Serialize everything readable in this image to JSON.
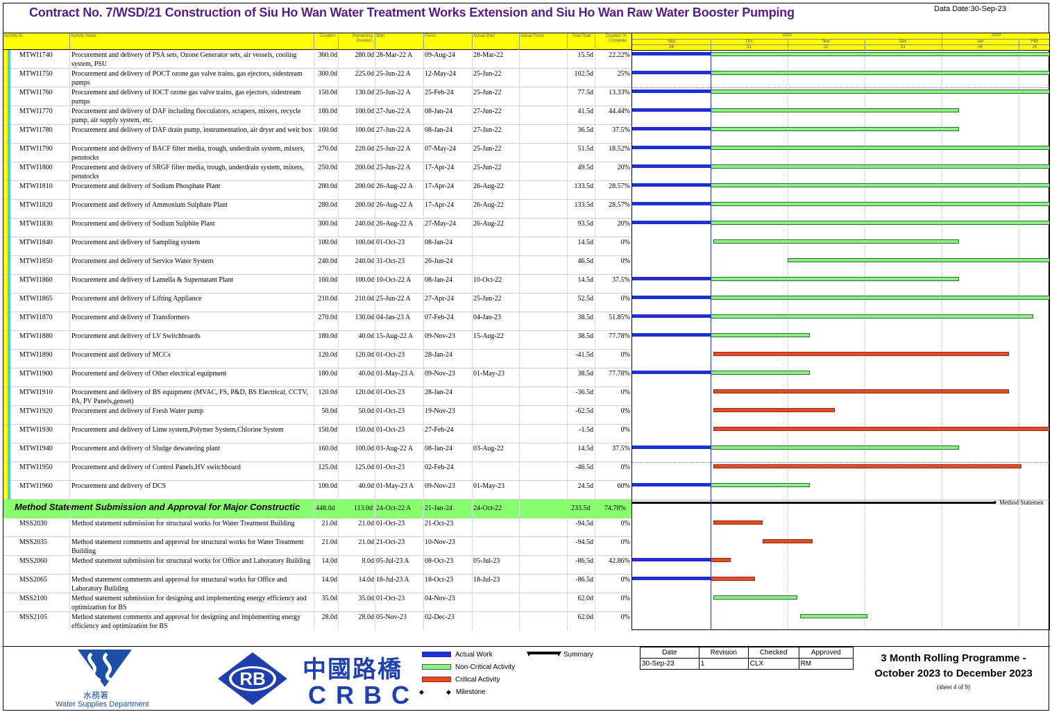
{
  "title": "Contract No. 7/WSD/21 Construction of Siu Ho Wan Water Treatment Works Extension and Siu Ho Wan Raw Water Booster Pumping",
  "data_date": "Data Date:30-Sep-23",
  "columns": {
    "id": "Activity ID",
    "name": "Activity Name",
    "orig_dur": "Duration",
    "rem_dur_1": "Remaining",
    "rem_dur_2": "Duration",
    "start": "Start",
    "finish": "Finish",
    "actual_start": "Actual Start",
    "actual_finish": "Actual Finish",
    "total_float": "Total Float",
    "pct_1": "Duration %",
    "pct_2": "Complete"
  },
  "timescale": {
    "years": [
      "2023",
      "2024"
    ],
    "months": [
      "Sep",
      "Oct",
      "Nov",
      "Dec",
      "Jan",
      "Feb"
    ],
    "days": [
      "26",
      "31",
      "22",
      "31",
      "24",
      "25"
    ]
  },
  "rows": [
    {
      "id": "MTWI1740",
      "name": "Procurement and delivery of PSA sets, Ozone Generator sets, air vessels, cooling system, PSU",
      "od": "360.0d",
      "rd": "280.0d",
      "start": "28-Mar-22 A",
      "finish": "09-Aug-24",
      "as": "28-Mar-22",
      "af": "",
      "tf": "15.5d",
      "pct": "22.22%"
    },
    {
      "id": "MTWI1750",
      "name": "Procurement and delivery of POCT ozone gas valve trains, gas ejectors, sidestream pumps",
      "od": "300.0d",
      "rd": "225.0d",
      "start": "25-Jun-22 A",
      "finish": "12-May-24",
      "as": "25-Jun-22",
      "af": "",
      "tf": "102.5d",
      "pct": "25%"
    },
    {
      "id": "MTWI1760",
      "name": "Procurement and delivery of IOCT ozone gas valve trains, gas ejectors, sidestream pumps",
      "od": "150.0d",
      "rd": "130.0d",
      "start": "25-Jun-22 A",
      "finish": "25-Feb-24",
      "as": "25-Jun-22",
      "af": "",
      "tf": "77.5d",
      "pct": "13.33%"
    },
    {
      "id": "MTWI1770",
      "name": "Procurement and delivery of DAF including flocculators, scrapers, mixers, recycle pump, air supply system, etc.",
      "od": "180.0d",
      "rd": "100.0d",
      "start": "27-Jun-22 A",
      "finish": "08-Jan-24",
      "as": "27-Jun-22",
      "af": "",
      "tf": "41.5d",
      "pct": "44.44%"
    },
    {
      "id": "MTWI1780",
      "name": "Procurement and delivery of DAF drain pump, instrumentation, air dryer and weir box",
      "od": "160.0d",
      "rd": "100.0d",
      "start": "27-Jun-22 A",
      "finish": "08-Jan-24",
      "as": "27-Jun-22",
      "af": "",
      "tf": "36.5d",
      "pct": "37.5%"
    },
    {
      "id": "MTWI1790",
      "name": "Procurement and delivery of BACF filter media, trough, underdrain system, mixers, penstocks",
      "od": "270.0d",
      "rd": "220.0d",
      "start": "25-Jun-22 A",
      "finish": "07-May-24",
      "as": "25-Jun-22",
      "af": "",
      "tf": "51.5d",
      "pct": "18.52%"
    },
    {
      "id": "MTWI1800",
      "name": "Procurement and delivery of SRGF filter media, trough, underdrain system, mixers, penstocks",
      "od": "250.0d",
      "rd": "200.0d",
      "start": "25-Jun-22 A",
      "finish": "17-Apr-24",
      "as": "25-Jun-22",
      "af": "",
      "tf": "49.5d",
      "pct": "20%"
    },
    {
      "id": "MTWI1810",
      "name": "Procurement and delivery of Sodium Phosphate Plant",
      "od": "280.0d",
      "rd": "200.0d",
      "start": "26-Aug-22 A",
      "finish": "17-Apr-24",
      "as": "26-Aug-22",
      "af": "",
      "tf": "133.5d",
      "pct": "28.57%"
    },
    {
      "id": "MTWI1820",
      "name": "Procurement and delivery of Ammonium Sulphate Plant",
      "od": "280.0d",
      "rd": "200.0d",
      "start": "26-Aug-22 A",
      "finish": "17-Apr-24",
      "as": "26-Aug-22",
      "af": "",
      "tf": "133.5d",
      "pct": "28.57%"
    },
    {
      "id": "MTWI1830",
      "name": "Procurement and delivery of Sodium Sulphite Plant",
      "od": "300.0d",
      "rd": "240.0d",
      "start": "26-Aug-22 A",
      "finish": "27-May-24",
      "as": "26-Aug-22",
      "af": "",
      "tf": "93.5d",
      "pct": "20%"
    },
    {
      "id": "MTWI1840",
      "name": "Procurement and delivery of Sampling system",
      "od": "100.0d",
      "rd": "100.0d",
      "start": "01-Oct-23",
      "finish": "08-Jan-24",
      "as": "",
      "af": "",
      "tf": "14.5d",
      "pct": "0%"
    },
    {
      "id": "MTWI1850",
      "name": "Procurement and delivery of Service Water System",
      "od": "240.0d",
      "rd": "240.0d",
      "start": "31-Oct-23",
      "finish": "26-Jun-24",
      "as": "",
      "af": "",
      "tf": "46.5d",
      "pct": "0%"
    },
    {
      "id": "MTWI1860",
      "name": "Procurement and delivery of Lamella & Supernatant Plant",
      "od": "160.0d",
      "rd": "100.0d",
      "start": "10-Oct-22 A",
      "finish": "08-Jan-24",
      "as": "10-Oct-22",
      "af": "",
      "tf": "14.5d",
      "pct": "37.5%"
    },
    {
      "id": "MTWI1865",
      "name": "Procurement and delivery of Lifting Appliance",
      "od": "210.0d",
      "rd": "210.0d",
      "start": "25-Jun-22 A",
      "finish": "27-Apr-24",
      "as": "25-Jun-22",
      "af": "",
      "tf": "52.5d",
      "pct": "0%"
    },
    {
      "id": "MTWI1870",
      "name": "Procurement and delivery of Transformers",
      "od": "270.0d",
      "rd": "130.0d",
      "start": "04-Jan-23 A",
      "finish": "07-Feb-24",
      "as": "04-Jan-23",
      "af": "",
      "tf": "38.5d",
      "pct": "51.85%"
    },
    {
      "id": "MTWI1880",
      "name": "Procurement and delivery of LV Switchboards",
      "od": "180.0d",
      "rd": "40.0d",
      "start": "15-Aug-22 A",
      "finish": "09-Nov-23",
      "as": "15-Aug-22",
      "af": "",
      "tf": "38.5d",
      "pct": "77.78%"
    },
    {
      "id": "MTWI1890",
      "name": "Procurement and delivery of MCCs",
      "od": "120.0d",
      "rd": "120.0d",
      "start": "01-Oct-23",
      "finish": "28-Jan-24",
      "as": "",
      "af": "",
      "tf": "-41.5d",
      "pct": "0%"
    },
    {
      "id": "MTWI1900",
      "name": "Procurement and delivery of Other electrical equipment",
      "od": "180.0d",
      "rd": "40.0d",
      "start": "01-May-23 A",
      "finish": "09-Nov-23",
      "as": "01-May-23",
      "af": "",
      "tf": "38.5d",
      "pct": "77.78%"
    },
    {
      "id": "MTWI1910",
      "name": "Procurement and delivery of BS equipment (MVAC, FS, P&D, BS Electrical, CCTV, PA, PV Panels,genset)",
      "od": "120.0d",
      "rd": "120.0d",
      "start": "01-Oct-23",
      "finish": "28-Jan-24",
      "as": "",
      "af": "",
      "tf": "-36.5d",
      "pct": "0%"
    },
    {
      "id": "MTWI1920",
      "name": "Procurement and delivery of Fresh Water pump",
      "od": "50.0d",
      "rd": "50.0d",
      "start": "01-Oct-23",
      "finish": "19-Nov-23",
      "as": "",
      "af": "",
      "tf": "-62.5d",
      "pct": "0%"
    },
    {
      "id": "MTWI1930",
      "name": "Procurement and delivery of Lime system,Polymer System,Chlorine System",
      "od": "150.0d",
      "rd": "150.0d",
      "start": "01-Oct-23",
      "finish": "27-Feb-24",
      "as": "",
      "af": "",
      "tf": "-1.5d",
      "pct": "0%"
    },
    {
      "id": "MTWI1940",
      "name": "Procurement and delivery of Sludge dewatering plant",
      "od": "160.0d",
      "rd": "100.0d",
      "start": "03-Aug-22 A",
      "finish": "08-Jan-24",
      "as": "03-Aug-22",
      "af": "",
      "tf": "14.5d",
      "pct": "37.5%"
    },
    {
      "id": "MTWI1950",
      "name": "Procurement and delivery of Control Panels,HV switchboard",
      "od": "125.0d",
      "rd": "125.0d",
      "start": "01-Oct-23",
      "finish": "02-Feb-24",
      "as": "",
      "af": "",
      "tf": "-46.5d",
      "pct": "0%"
    },
    {
      "id": "MTWI1960",
      "name": "Procurement and delivery of DCS",
      "od": "100.0d",
      "rd": "40.0d",
      "start": "01-May-23 A",
      "finish": "09-Nov-23",
      "as": "01-May-23",
      "af": "",
      "tf": "24.5d",
      "pct": "60%"
    }
  ],
  "wbs": {
    "name": "Method Statement Submission and Approval for Major Constructic",
    "od": "448.0d",
    "rd": "113.0d",
    "start": "24-Oct-22 A",
    "finish": "21-Jan-24",
    "as": "24-Oct-22",
    "tf": "233.5d",
    "pct": "74.78%",
    "gantt_label": "Method Statemen"
  },
  "rows2": [
    {
      "id": "MSS2030",
      "name": "Method statement submission for structural works for Water Treatment Building",
      "od": "21.0d",
      "rd": "21.0d",
      "start": "01-Oct-23",
      "finish": "21-Oct-23",
      "as": "",
      "af": "",
      "tf": "-94.5d",
      "pct": "0%"
    },
    {
      "id": "MSS2035",
      "name": "Method statement comments and approval for structural works for Water Treatment Building",
      "od": "21.0d",
      "rd": "21.0d",
      "start": "21-Oct-23",
      "finish": "10-Nov-23",
      "as": "",
      "af": "",
      "tf": "-94.5d",
      "pct": "0%"
    },
    {
      "id": "MSS2060",
      "name": "Method statement submission for structural works for Office and Laboratory Building",
      "od": "14.0d",
      "rd": "8.0d",
      "start": "05-Jul-23 A",
      "finish": "08-Oct-23",
      "as": "05-Jul-23",
      "af": "",
      "tf": "-86.5d",
      "pct": "42.86%"
    },
    {
      "id": "MSS2065",
      "name": "Method statement comments and approval for structural works for Office and Laboratory Building",
      "od": "14.0d",
      "rd": "14.0d",
      "start": "18-Jul-23 A",
      "finish": "18-Oct-23",
      "as": "18-Jul-23",
      "af": "",
      "tf": "-86.5d",
      "pct": "0%"
    },
    {
      "id": "MSS2100",
      "name": "Method statement submission for designing and implementing energy efficiency and optimization for BS",
      "od": "35.0d",
      "rd": "35.0d",
      "start": "01-Oct-23",
      "finish": "04-Nov-23",
      "as": "",
      "af": "",
      "tf": "62.0d",
      "pct": "0%"
    },
    {
      "id": "MSS2105",
      "name": "Method statement comments and approval for designing and implementing energy efficiency and optimization for BS",
      "od": "28.0d",
      "rd": "28.0d",
      "start": "05-Nov-23",
      "finish": "02-Dec-23",
      "as": "",
      "af": "",
      "tf": "62.0d",
      "pct": "0%"
    }
  ],
  "legend": {
    "actual": "Actual Work",
    "noncrit": "Non-Critical Activity",
    "crit": "Critical Activity",
    "milestone": "Milestone",
    "summary": "Summary"
  },
  "logos": {
    "wsd_cn": "水務署",
    "wsd_en": "Water Supplies Department",
    "rb": "RB",
    "crbc_cn": "中國路橋",
    "crbc_en": "CRBC"
  },
  "signoff": {
    "headers": [
      "Date",
      "Revision",
      "Checked",
      "Approved"
    ],
    "values": [
      "30-Sep-23",
      "1",
      "CLX",
      "RM"
    ]
  },
  "programme_title_1": "3 Month Rolling Programme -",
  "programme_title_2": "October 2023 to December 2023",
  "sheet": "(sheet 4 of 9)",
  "colors": {
    "actual": "#1f2fd0",
    "noncrit": "#8fef87",
    "crit": "#e64b26",
    "header": "#ffff00",
    "wbs": "#88ff6c",
    "title": "#5b1a8c"
  }
}
